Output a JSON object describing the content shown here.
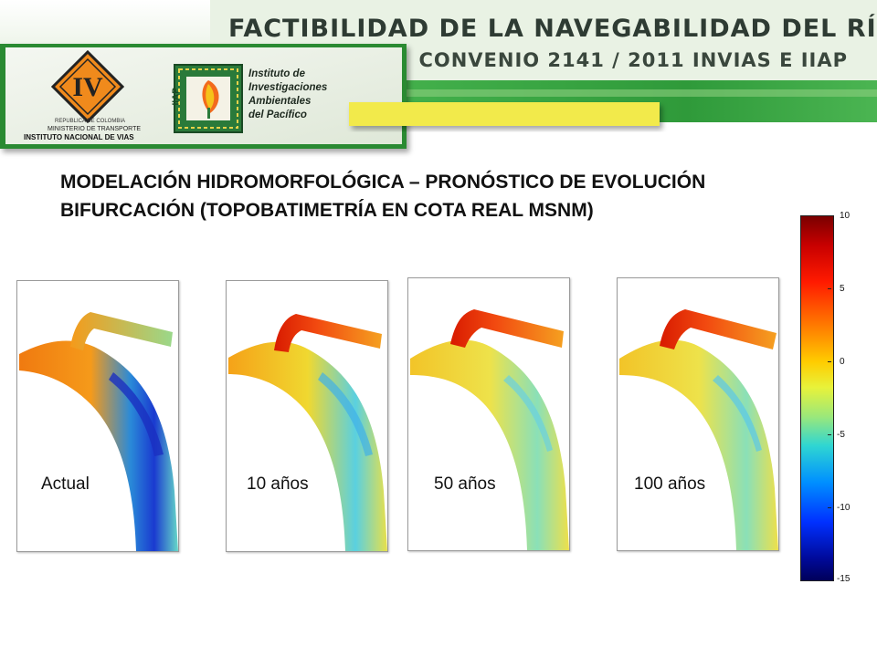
{
  "header": {
    "title": "FACTIBILIDAD DE LA NAVEGABILIDAD DEL RÍO ATRATO (COMPLEMENTO)",
    "subtitle": "CONVENIO 2141 / 2011 INVIAS E IIAP"
  },
  "logos": {
    "ministry_line1": "REPUBLICA DE COLOMBIA",
    "ministry_line2": "MINISTERIO DE TRANSPORTE",
    "ministry_line3": "INSTITUTO NACIONAL DE VIAS",
    "iiap_badge": "IIAP",
    "iiap_name": [
      "Instituto de",
      "Investigaciones",
      "Ambientales",
      "del Pacífico"
    ]
  },
  "main": {
    "title_line1": "MODELACIÓN HIDROMORFOLÓGICA – PRONÓSTICO DE EVOLUCIÓN",
    "title_line2": "BIFURCACIÓN (TOPOBATIMETRÍA EN COTA REAL  MSNM)"
  },
  "panels": [
    {
      "label": "Actual"
    },
    {
      "label": "10 años"
    },
    {
      "label": "50 años"
    },
    {
      "label": "100 años"
    }
  ],
  "colorbar": {
    "ticks": [
      "10",
      "5",
      "0",
      "-5",
      "-10",
      "-15"
    ],
    "max": 10,
    "min": -15
  },
  "colors": {
    "header_green": "#2f9a3a",
    "panel_yellow": "#f2ea4c",
    "logo_orange": "#f08a1c"
  }
}
